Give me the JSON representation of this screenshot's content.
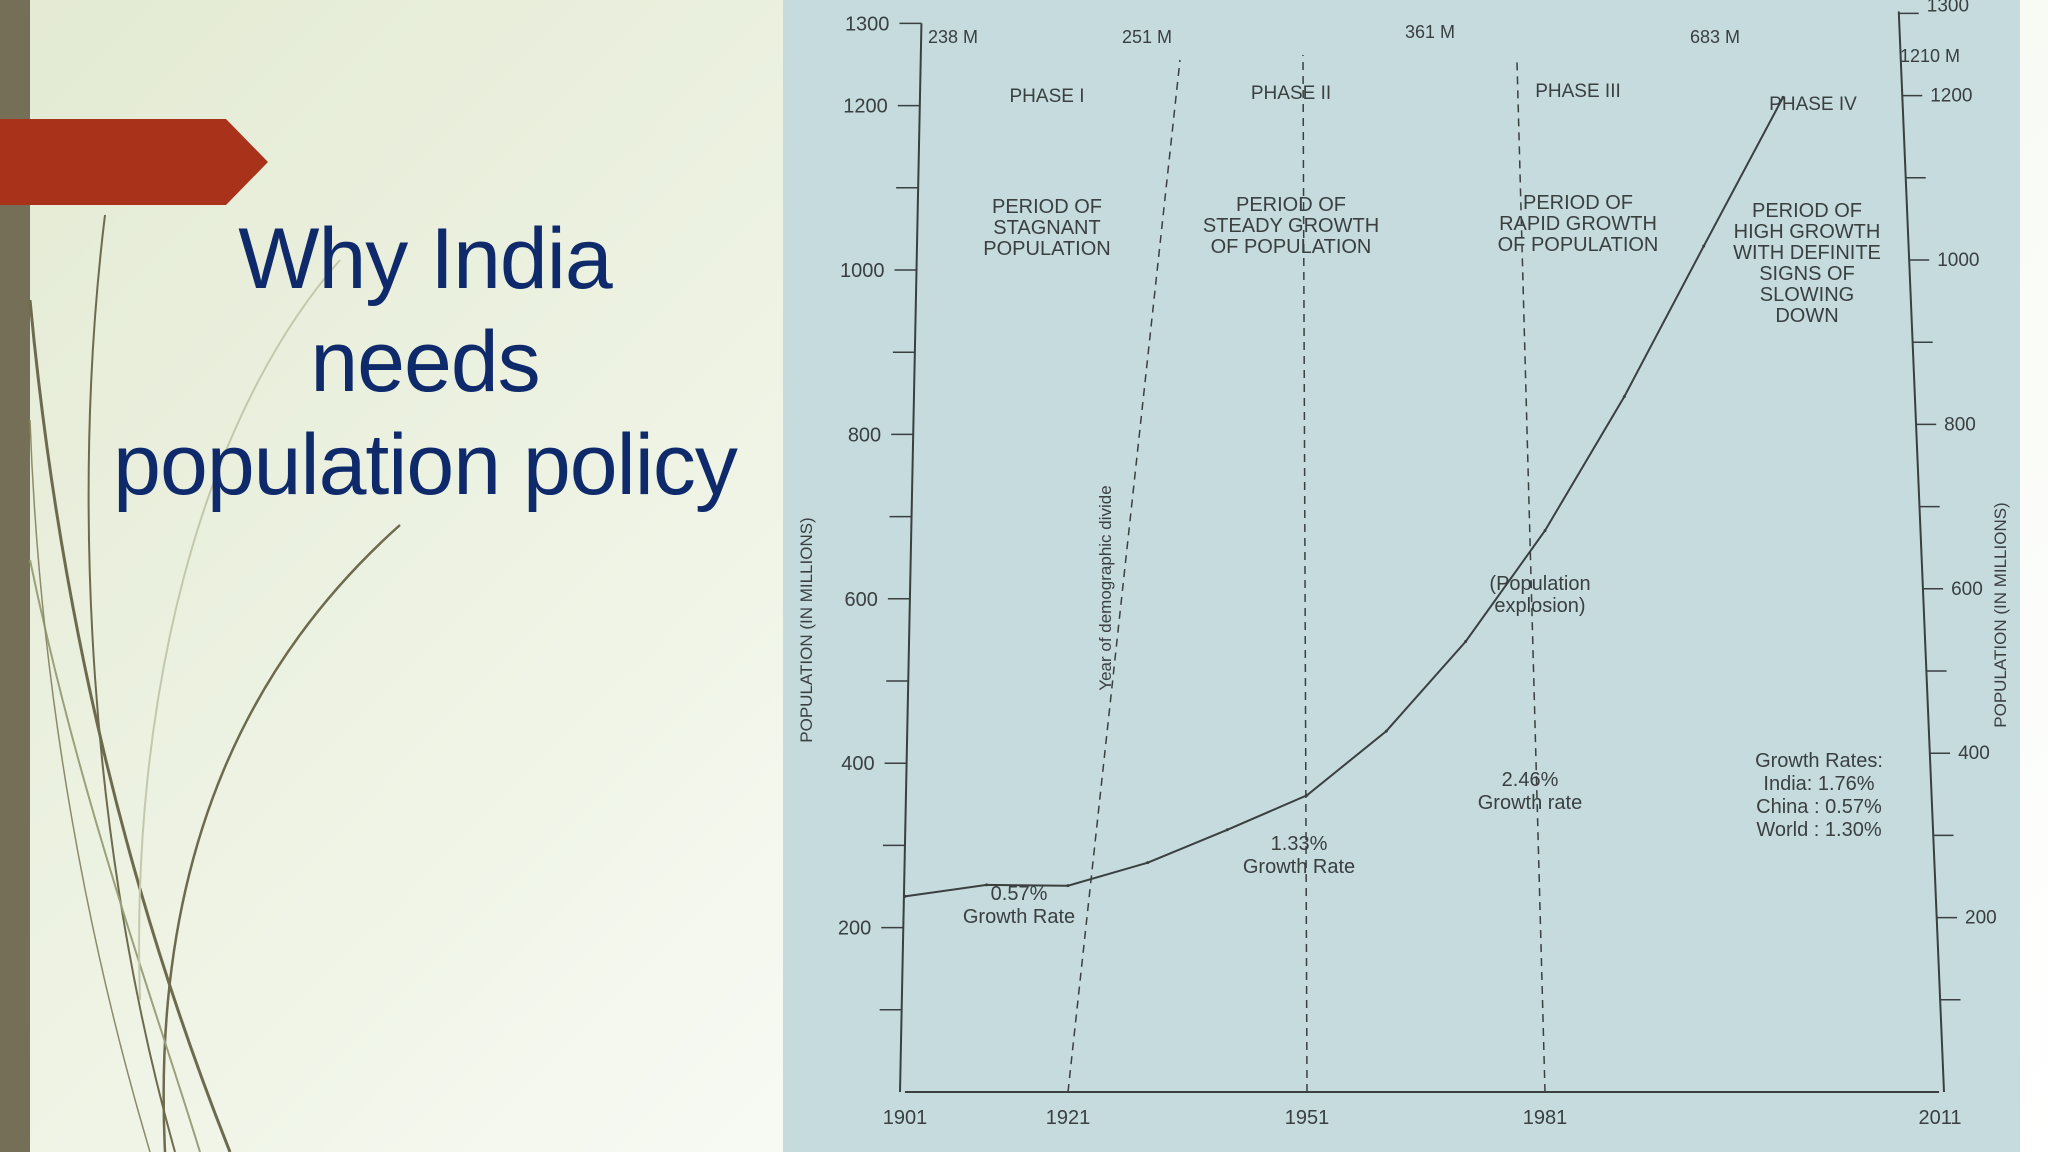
{
  "slide": {
    "title_lines": [
      "Why India",
      "needs",
      "population policy"
    ]
  },
  "colors": {
    "accent_tab": "#a8321a",
    "side_bar": "#756f57",
    "title": "#0e2a6b",
    "chart_bg": "#c5dbde",
    "chart_ink": "#3a3f40"
  },
  "chart_data": {
    "type": "line",
    "title": "",
    "ylabel": "POPULATION (IN MILLIONS)",
    "ylabel_right": "POPULATION (IN MILLIONS)",
    "xlabel": "",
    "ylim": [
      0,
      1300
    ],
    "y_ticks": [
      200,
      400,
      600,
      800,
      1000,
      1200,
      1300
    ],
    "y_ticks_right": [
      200,
      400,
      600,
      800,
      1000,
      1200,
      1300
    ],
    "x_ticks": [
      "1901",
      "1921",
      "1951",
      "1981",
      "2011"
    ],
    "series": [
      {
        "x": [
          1901,
          1911,
          1921,
          1931,
          1941,
          1951,
          1961,
          1971,
          1981,
          1991,
          2001,
          2011
        ],
        "values": [
          238,
          252,
          251,
          279,
          319,
          361,
          439,
          548,
          683,
          846,
          1029,
          1210
        ]
      }
    ],
    "top_labels": [
      {
        "year": 1901,
        "text": "238 M"
      },
      {
        "year": 1921,
        "text": "251 M"
      },
      {
        "year": 1951,
        "text": "361 M"
      },
      {
        "year": 1981,
        "text": "683 M"
      },
      {
        "year": 2011,
        "text": "1210 M"
      }
    ],
    "phases": [
      {
        "name": "PHASE I",
        "desc": [
          "PERIOD OF",
          "STAGNANT",
          "POPULATION"
        ],
        "rate": [
          "0.57%",
          "Growth Rate"
        ]
      },
      {
        "name": "PHASE II",
        "desc": [
          "PERIOD OF",
          "STEADY GROWTH",
          "OF POPULATION"
        ],
        "rate": [
          "1.33%",
          "Growth Rate"
        ]
      },
      {
        "name": "PHASE III",
        "desc": [
          "PERIOD OF",
          "RAPID GROWTH",
          "OF POPULATION"
        ],
        "rate": [
          "2.46%",
          "Growth rate"
        ]
      },
      {
        "name": "PHASE IV",
        "desc": [
          "PERIOD OF",
          "HIGH GROWTH",
          "WITH DEFINITE",
          "SIGNS OF",
          "SLOWING",
          "DOWN"
        ],
        "rate": [
          "Growth Rates:",
          "India: 1.76%",
          "China : 0.57%",
          "World : 1.30%"
        ]
      }
    ],
    "annotations": {
      "divide": "Year of demographic divide",
      "explosion": [
        "(Population",
        "explosion)"
      ]
    }
  }
}
